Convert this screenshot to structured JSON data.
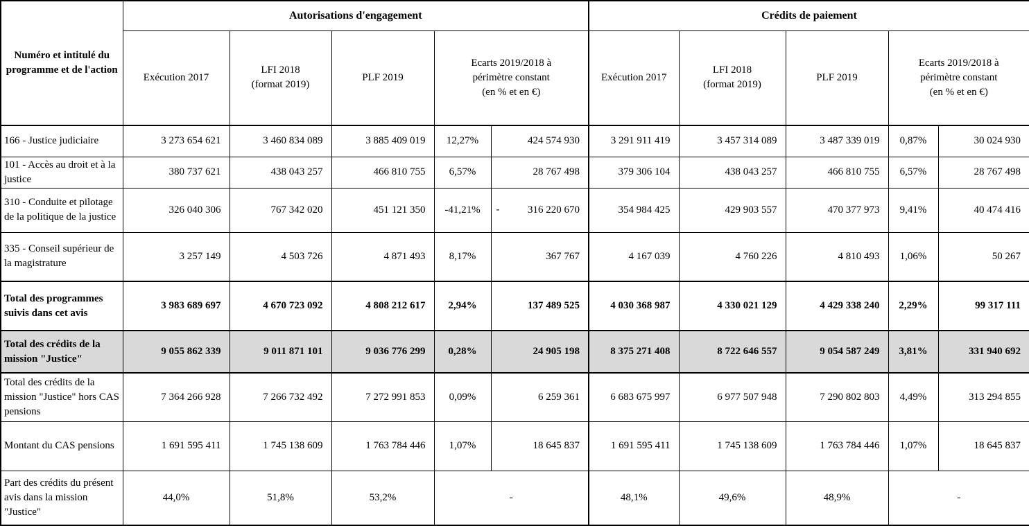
{
  "table": {
    "corner_header": "Numéro et intitulé du programme et de l'action",
    "section_ae": "Autorisations d'engagement",
    "section_cp": "Crédits de paiement",
    "sub_headers": {
      "execution": "Exécution 2017",
      "lfi_line1": "LFI 2018",
      "lfi_line2": "(format 2019)",
      "plf": "PLF 2019",
      "ecarts_line1": "Ecarts 2019/2018 à",
      "ecarts_line2": "périmètre constant",
      "ecarts_line3": "(en % et en €)"
    },
    "rows": [
      {
        "label": "166 - Justice judiciaire",
        "ae": {
          "exec": "3 273 654 621",
          "lfi": "3 460 834 089",
          "plf": "3 885 409 019",
          "pct": "12,27%",
          "eur": "424 574 930"
        },
        "cp": {
          "exec": "3 291 911 419",
          "lfi": "3 457 314 089",
          "plf": "3 487 339 019",
          "pct": "0,87%",
          "eur": "30 024 930"
        }
      },
      {
        "label": "101 - Accès au droit et à la justice",
        "ae": {
          "exec": "380 737 621",
          "lfi": "438 043 257",
          "plf": "466 810 755",
          "pct": "6,57%",
          "eur": "28 767 498"
        },
        "cp": {
          "exec": "379 306 104",
          "lfi": "438 043 257",
          "plf": "466 810 755",
          "pct": "6,57%",
          "eur": "28 767 498"
        }
      },
      {
        "label": "310 - Conduite et pilotage de la politique de la justice",
        "ae": {
          "exec": "326 040 306",
          "lfi": "767 342 020",
          "plf": "451 121 350",
          "pct": "-41,21%",
          "eur": "316 220 670",
          "eur_negative": true
        },
        "cp": {
          "exec": "354 984 425",
          "lfi": "429 903 557",
          "plf": "470 377 973",
          "pct": "9,41%",
          "eur": "40 474 416"
        }
      },
      {
        "label": "335 - Conseil supérieur de la magistrature",
        "ae": {
          "exec": "3 257 149",
          "lfi": "4 503 726",
          "plf": "4 871 493",
          "pct": "8,17%",
          "eur": "367 767"
        },
        "cp": {
          "exec": "4 167 039",
          "lfi": "4 760 226",
          "plf": "4 810 493",
          "pct": "1,06%",
          "eur": "50 267"
        }
      },
      {
        "label": "Total des programmes suivis dans cet avis",
        "bold": true,
        "thick_top": true,
        "ae": {
          "exec": "3 983 689 697",
          "lfi": "4 670 723 092",
          "plf": "4 808 212 617",
          "pct": "2,94%",
          "eur": "137 489 525"
        },
        "cp": {
          "exec": "4 030 368 987",
          "lfi": "4 330 021 129",
          "plf": "4 429 338 240",
          "pct": "2,29%",
          "eur": "99 317 111"
        }
      },
      {
        "label": "Total des crédits de la mission \"Justice\"",
        "bold": true,
        "shaded": true,
        "thick_top": true,
        "ae": {
          "exec": "9 055 862 339",
          "lfi": "9 011 871 101",
          "plf": "9 036 776 299",
          "pct": "0,28%",
          "eur": "24 905 198"
        },
        "cp": {
          "exec": "8 375 271 408",
          "lfi": "8 722 646 557",
          "plf": "9 054 587 249",
          "pct": "3,81%",
          "eur": "331 940 692"
        }
      },
      {
        "label": "Total des crédits de la mission \"Justice\" hors CAS pensions",
        "thick_top": true,
        "ae": {
          "exec": "7 364 266 928",
          "lfi": "7 266 732 492",
          "plf": "7 272 991 853",
          "pct": "0,09%",
          "eur": "6 259 361"
        },
        "cp": {
          "exec": "6 683 675 997",
          "lfi": "6 977 507 948",
          "plf": "7 290 802 803",
          "pct": "4,49%",
          "eur": "313 294 855"
        }
      },
      {
        "label": "Montant du CAS pensions",
        "ae": {
          "exec": "1 691 595 411",
          "lfi": "1 745 138 609",
          "plf": "1 763 784 446",
          "pct": "1,07%",
          "eur": "18 645 837"
        },
        "cp": {
          "exec": "1 691 595 411",
          "lfi": "1 745 138 609",
          "plf": "1 763 784 446",
          "pct": "1,07%",
          "eur": "18 645 837"
        }
      },
      {
        "label": "Part des crédits du présent avis dans la mission \"Justice\"",
        "values_centered": true,
        "ae": {
          "exec": "44,0%",
          "lfi": "51,8%",
          "plf": "53,2%",
          "merged": "-"
        },
        "cp": {
          "exec": "48,1%",
          "lfi": "49,6%",
          "plf": "48,9%",
          "merged": "-"
        }
      }
    ]
  }
}
